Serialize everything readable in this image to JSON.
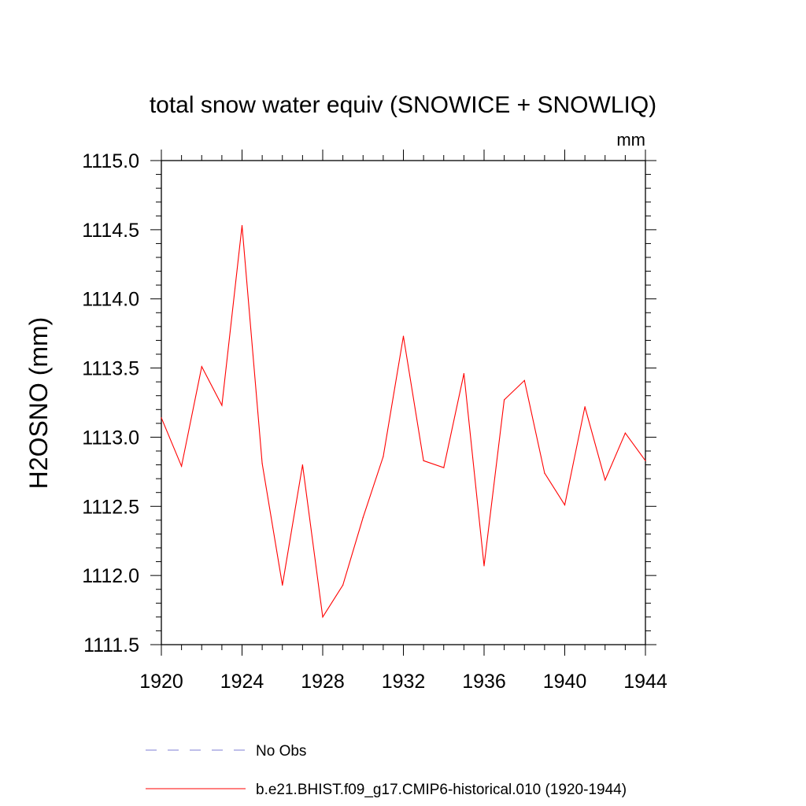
{
  "chart_data": {
    "type": "line",
    "title": "total snow water equiv (SNOWICE + SNOWLIQ)",
    "units": "mm",
    "xlabel": "",
    "ylabel": "H2OSNO  (mm)",
    "xlim": [
      1920,
      1944
    ],
    "ylim": [
      1111.5,
      1115.0
    ],
    "x_ticks": [
      "1920",
      "1924",
      "1928",
      "1932",
      "1936",
      "1940",
      "1944"
    ],
    "y_ticks": [
      "1111.5",
      "1112.0",
      "1112.5",
      "1113.0",
      "1113.5",
      "1114.0",
      "1114.5",
      "1115.0"
    ],
    "series": [
      {
        "name": "b.e21.BHIST.f09_g17.CMIP6-historical.010 (1920-1944)",
        "color": "#ff0000",
        "style": "solid",
        "x": [
          1920,
          1921,
          1922,
          1923,
          1924,
          1925,
          1926,
          1927,
          1928,
          1929,
          1930,
          1931,
          1932,
          1933,
          1934,
          1935,
          1936,
          1937,
          1938,
          1939,
          1940,
          1941,
          1942,
          1943,
          1944
        ],
        "values": [
          1113.14,
          1112.79,
          1113.51,
          1113.23,
          1114.53,
          1112.81,
          1111.93,
          1112.8,
          1111.7,
          1111.93,
          1112.42,
          1112.86,
          1113.73,
          1112.83,
          1112.78,
          1113.46,
          1112.07,
          1113.27,
          1113.41,
          1112.74,
          1112.51,
          1113.22,
          1112.69,
          1113.03,
          1112.83
        ]
      }
    ],
    "legend": [
      {
        "label": "No Obs",
        "color": "#7f7fd5",
        "style": "dashed"
      },
      {
        "label": "b.e21.BHIST.f09_g17.CMIP6-historical.010 (1920-1944)",
        "color": "#ff0000",
        "style": "solid"
      }
    ]
  }
}
